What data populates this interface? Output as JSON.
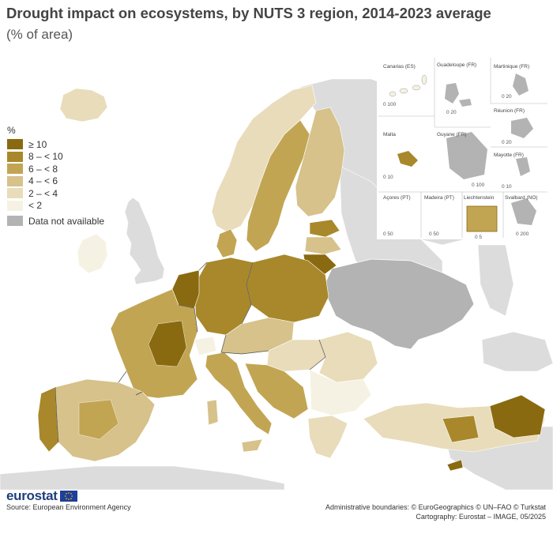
{
  "title": "Drought impact on ecosystems, by NUTS 3 region, 2014-2023 average",
  "subtitle": "(% of area)",
  "legend": {
    "unit": "%",
    "classes": [
      {
        "label": "≥ 10",
        "color": "#8a6a10"
      },
      {
        "label": "8 – < 10",
        "color": "#a8882b"
      },
      {
        "label": "6 – < 8",
        "color": "#c2a553"
      },
      {
        "label": "4 – < 6",
        "color": "#d6c28a"
      },
      {
        "label": "2 – < 4",
        "color": "#e8dcba"
      },
      {
        "label": "< 2",
        "color": "#f6f2e3"
      }
    ],
    "not_available": {
      "label": "Data not available",
      "color": "#b3b3b3"
    }
  },
  "colors": {
    "non_eu_land": "#dcdcdc",
    "sea": "#ffffff",
    "border": "#4d4d4d"
  },
  "insets": [
    {
      "name": "Canarias (ES)",
      "scale": "0  100"
    },
    {
      "name": "Guadeloupe (FR)",
      "scale": "0  20"
    },
    {
      "name": "Martinique (FR)",
      "scale": "0  20"
    },
    {
      "name": "Réunion (FR)",
      "scale": "0  20"
    },
    {
      "name": "Malta",
      "scale": "0  10"
    },
    {
      "name": "Guyane (FR)",
      "scale": "0  100"
    },
    {
      "name": "Mayotte (FR)",
      "scale": "0  10"
    },
    {
      "name": "Açores (PT)",
      "scale": "0  50"
    },
    {
      "name": "Madeira (PT)",
      "scale": "0  50"
    },
    {
      "name": "Liechtenstein",
      "scale": "0  5"
    },
    {
      "name": "Svalbard (NO)",
      "scale": "0  200"
    }
  ],
  "logo": "eurostat",
  "source": "Source: European Environment Agency",
  "credits": {
    "line1": "Administrative boundaries: © EuroGeographics © UN–FAO © Turkstat",
    "line2": "Cartography: Eurostat – IMAGE, 05/2025"
  }
}
